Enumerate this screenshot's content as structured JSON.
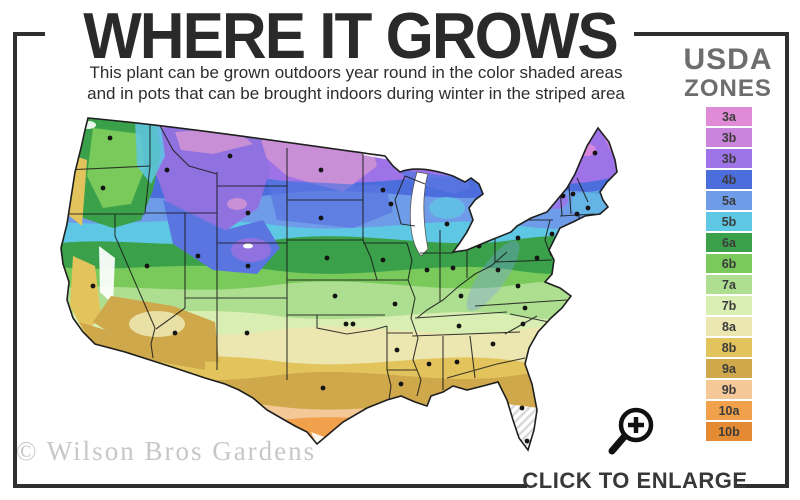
{
  "header": {
    "title": "WHERE IT GROWS",
    "subtitle_line1": "This plant can be grown outdoors year round in the color shaded areas",
    "subtitle_line2": "and in pots that can be brought indoors during winter in the striped area"
  },
  "legend": {
    "title_line1": "USDA",
    "title_line2": "ZONES",
    "zones": [
      {
        "label": "3a",
        "color": "#e08bd8"
      },
      {
        "label": "3b",
        "color": "#cb84dc"
      },
      {
        "label": "3b",
        "color": "#9e73e8"
      },
      {
        "label": "4b",
        "color": "#4c6edd"
      },
      {
        "label": "5a",
        "color": "#6f9ce9"
      },
      {
        "label": "5b",
        "color": "#5ec7e4"
      },
      {
        "label": "6a",
        "color": "#3aa14a"
      },
      {
        "label": "6b",
        "color": "#79c95b"
      },
      {
        "label": "7a",
        "color": "#aede90"
      },
      {
        "label": "7b",
        "color": "#d9eeb2"
      },
      {
        "label": "8a",
        "color": "#ece6b0"
      },
      {
        "label": "8b",
        "color": "#e3c45c"
      },
      {
        "label": "9a",
        "color": "#cea84b"
      },
      {
        "label": "9b",
        "color": "#f4c897"
      },
      {
        "label": "10a",
        "color": "#f1a14b"
      },
      {
        "label": "10b",
        "color": "#e38a33"
      }
    ]
  },
  "footer": {
    "click_to_enlarge": "CLICK TO ENLARGE",
    "watermark": "© Wilson Bros Gardens"
  },
  "icons": {
    "magnifier": "zoom-in-magnifier-icon"
  }
}
